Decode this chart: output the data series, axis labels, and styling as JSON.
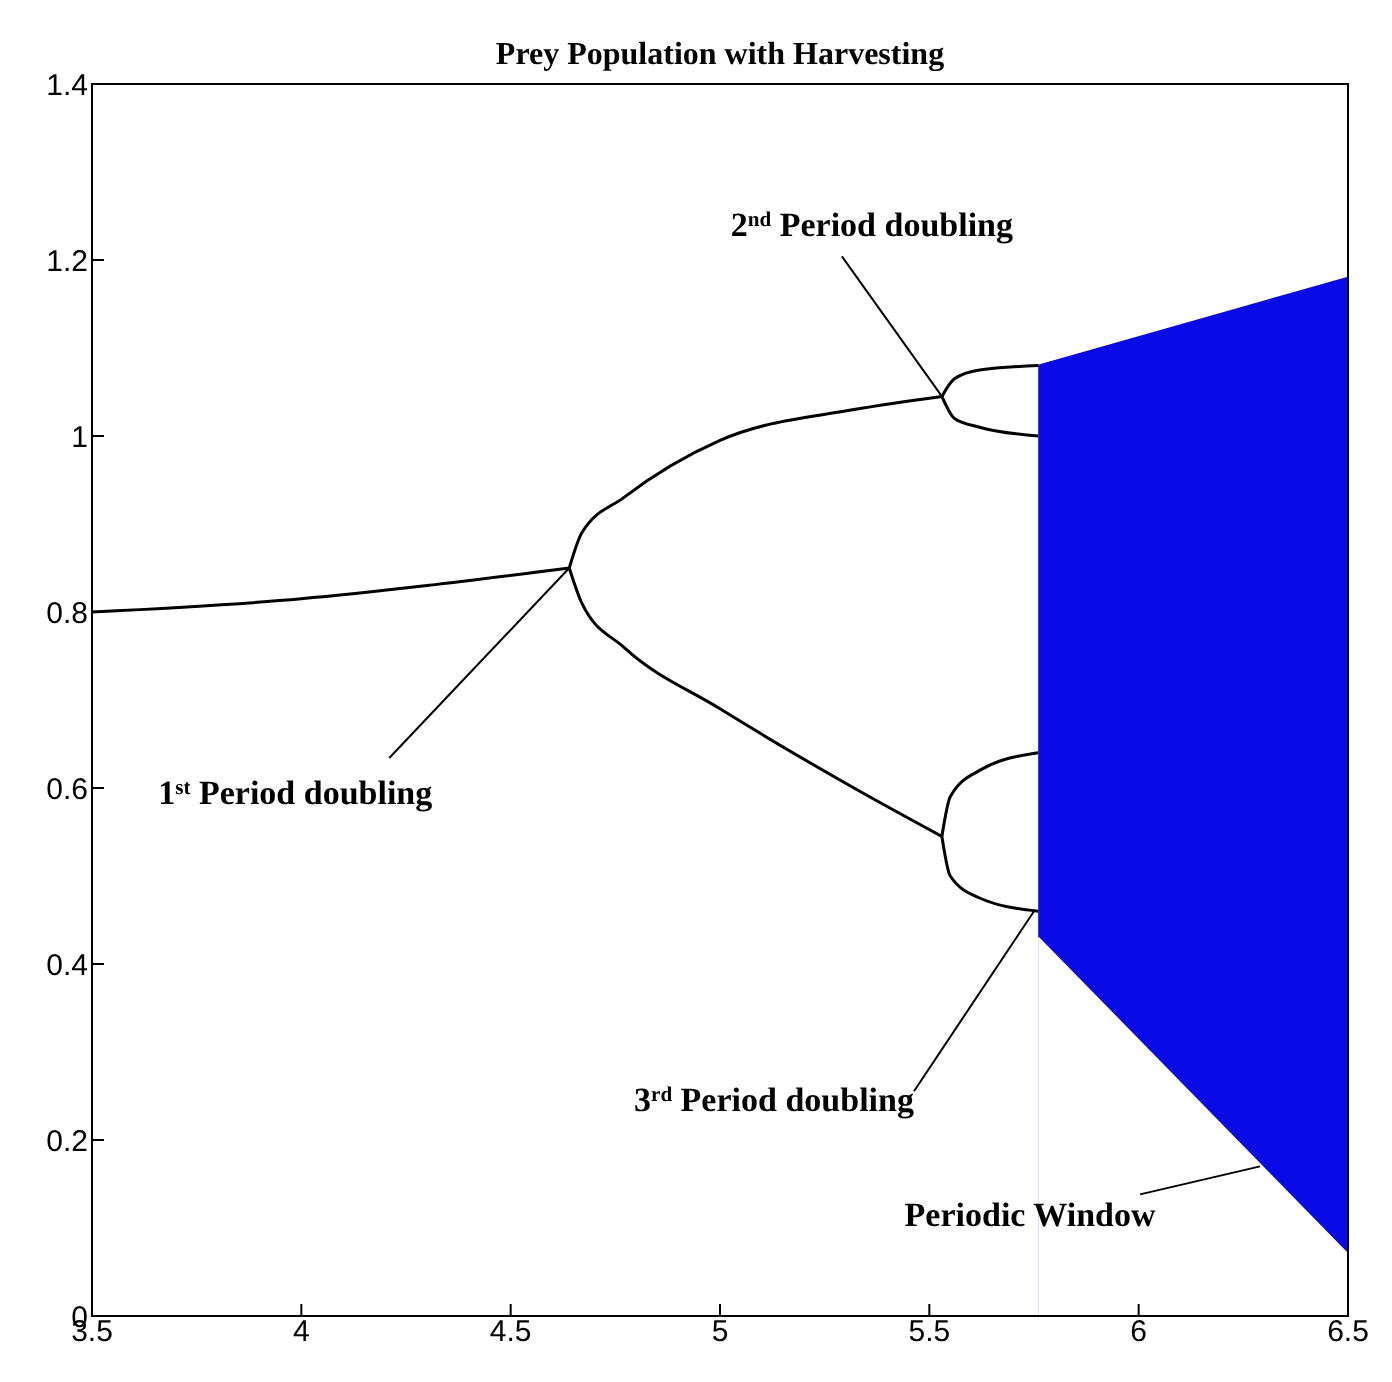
{
  "chart_data": {
    "type": "line",
    "title": "Prey Population with Harvesting",
    "xlim": [
      3.5,
      6.5
    ],
    "xticks": [
      3.5,
      4,
      4.5,
      5,
      5.5,
      6,
      6.5
    ],
    "ylim": [
      0,
      1.4
    ],
    "yticks": [
      0,
      0.2,
      0.4,
      0.6,
      0.8,
      1,
      1.2,
      1.4
    ],
    "series": [
      {
        "color": "#000000",
        "x": [
          3.5,
          4.0,
          4.3,
          4.64
        ],
        "values": [
          0.8,
          0.815,
          0.83,
          0.85
        ]
      },
      {
        "color": "#000000",
        "x": [
          4.64,
          4.67,
          4.77,
          5.0,
          5.32,
          5.53
        ],
        "values": [
          0.85,
          0.89,
          0.93,
          0.995,
          1.03,
          1.045
        ]
      },
      {
        "color": "#000000",
        "x": [
          4.64,
          4.67,
          4.77,
          5.0,
          5.32,
          5.53
        ],
        "values": [
          0.85,
          0.81,
          0.76,
          0.69,
          0.6,
          0.545
        ]
      },
      {
        "color": "#000000",
        "x": [
          5.53,
          5.56,
          5.62,
          5.76
        ],
        "values": [
          1.045,
          1.065,
          1.075,
          1.08
        ]
      },
      {
        "color": "#000000",
        "x": [
          5.53,
          5.56,
          5.62,
          5.76
        ],
        "values": [
          1.045,
          1.02,
          1.01,
          1.0
        ]
      },
      {
        "color": "#000000",
        "x": [
          5.53,
          5.55,
          5.62,
          5.76
        ],
        "values": [
          0.545,
          0.59,
          0.62,
          0.64
        ]
      },
      {
        "color": "#000000",
        "x": [
          5.53,
          5.55,
          5.62,
          5.76
        ],
        "values": [
          0.545,
          0.5,
          0.475,
          0.46
        ]
      },
      {
        "type": "area",
        "color": "#0a0ae6",
        "x": [
          5.76,
          6.5
        ],
        "values": [
          1.08,
          1.18
        ]
      },
      {
        "type": "area",
        "color": "#ffffff",
        "x": [
          5.76,
          6.5
        ],
        "values": [
          0.43,
          0.07
        ]
      }
    ],
    "annotations": [
      {
        "text": "1$^{st}$ Period doubling",
        "x": 4.64,
        "y": 0.85
      },
      {
        "text": "2$^{nd}$ Period doubling",
        "x": 5.53,
        "y": 1.045
      },
      {
        "text": "3$^{rd}$ Period doubling",
        "x": 5.75,
        "y": 0.46
      },
      {
        "text": "Periodic Window",
        "x": 6.29,
        "y": 0.17
      }
    ]
  }
}
